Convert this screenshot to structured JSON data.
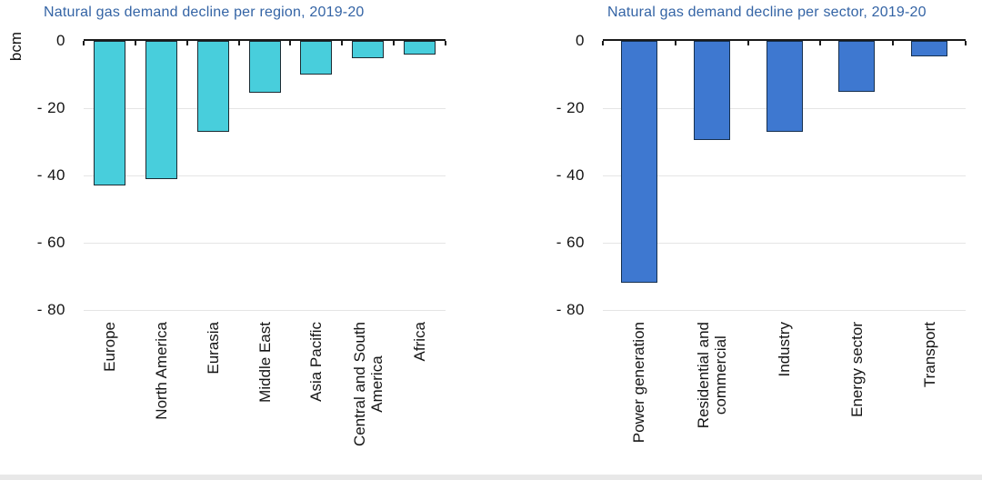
{
  "colors": {
    "axis": "#1a1a1a",
    "grid": "#e5e5e5",
    "text": "#141414",
    "bottom_strip": "#e8e8e8",
    "background": "#ffffff"
  },
  "chart_data": [
    {
      "type": "bar",
      "title": "Natural gas demand decline per region, 2019-20",
      "title_color": "#3464a5",
      "ylabel": "bcm",
      "xlabel": "",
      "categories": [
        "Europe",
        "North America",
        "Eurasia",
        "Middle East",
        "Asia Pacific",
        "Central and South\nAmerica",
        "Africa"
      ],
      "values": [
        -43,
        -41,
        -27,
        -15.5,
        -10,
        -5,
        -4
      ],
      "ylim": [
        -80,
        0
      ],
      "yticks": [
        0,
        -20,
        -40,
        -60,
        -80
      ],
      "ytick_labels": [
        "0",
        "- 20",
        "- 40",
        "- 60",
        "- 80"
      ],
      "grid": true,
      "legend": "none",
      "bar_fill": "#48cedc",
      "bar_stroke": "#1c2b33"
    },
    {
      "type": "bar",
      "title": "Natural gas demand decline per sector, 2019-20",
      "title_color": "#3464a5",
      "ylabel": "",
      "xlabel": "",
      "categories": [
        "Power generation",
        "Residential and\ncommercial",
        "Industry",
        "Energy sector",
        "Transport"
      ],
      "values": [
        -72,
        -29.5,
        -27,
        -15,
        -4.5
      ],
      "ylim": [
        -80,
        0
      ],
      "yticks": [
        0,
        -20,
        -40,
        -60,
        -80
      ],
      "ytick_labels": [
        "0",
        "- 20",
        "- 40",
        "- 60",
        "- 80"
      ],
      "grid": true,
      "legend": "none",
      "bar_fill": "#3e78d0",
      "bar_stroke": "#16304f"
    }
  ]
}
